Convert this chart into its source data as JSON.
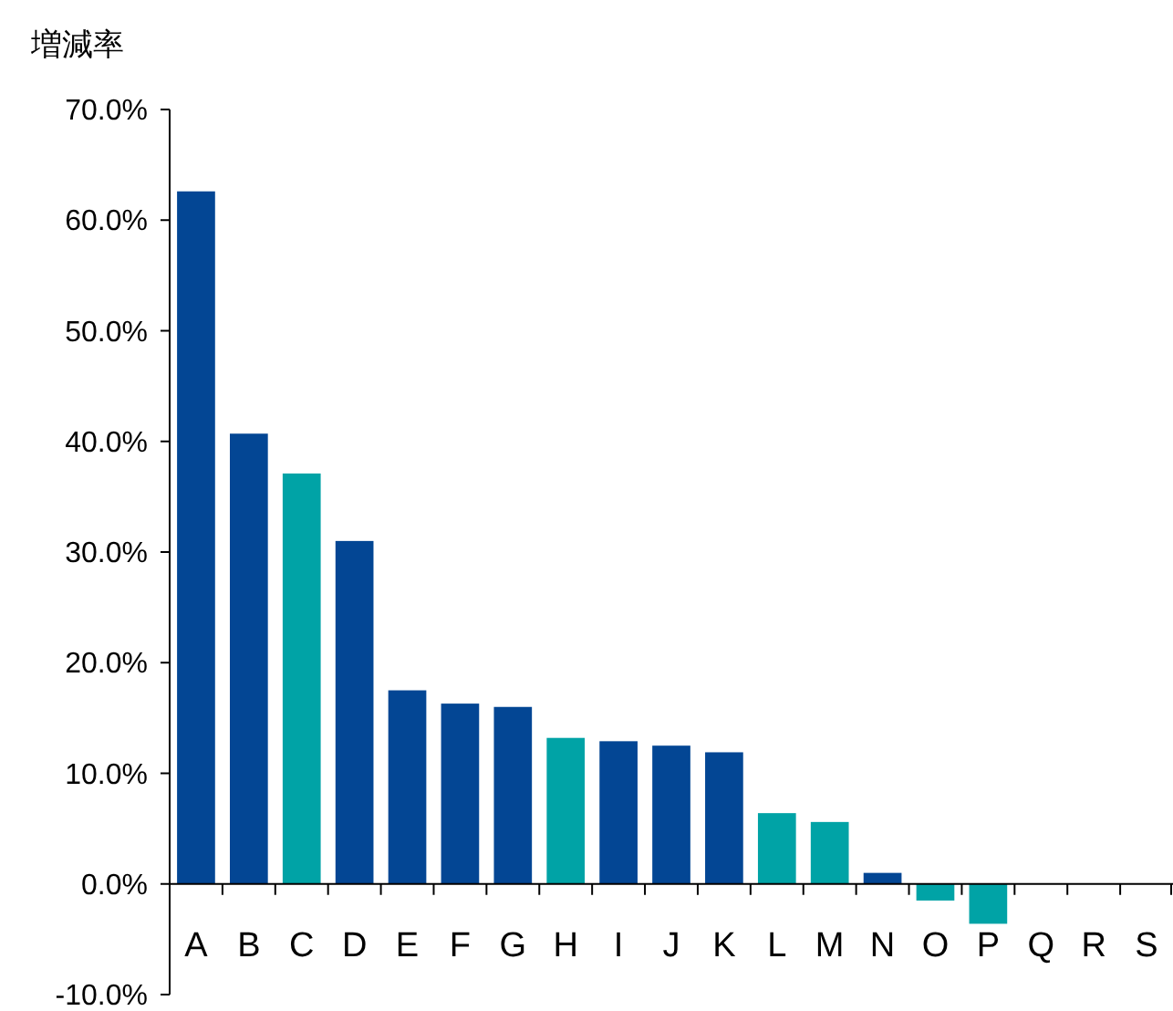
{
  "chart_data": {
    "type": "bar",
    "ylabel": "増減率",
    "categories": [
      "A",
      "B",
      "C",
      "D",
      "E",
      "F",
      "G",
      "H",
      "I",
      "J",
      "K",
      "L",
      "M",
      "N",
      "O",
      "P",
      "Q",
      "R",
      "S"
    ],
    "values": [
      62.6,
      40.7,
      37.1,
      31.0,
      17.5,
      16.3,
      16.0,
      13.2,
      12.9,
      12.5,
      11.9,
      6.4,
      5.6,
      1.0,
      -1.5,
      -3.6,
      0,
      0,
      0
    ],
    "colors": [
      "#034694",
      "#034694",
      "#00a3a6",
      "#034694",
      "#034694",
      "#034694",
      "#034694",
      "#00a3a6",
      "#034694",
      "#034694",
      "#034694",
      "#00a3a6",
      "#00a3a6",
      "#034694",
      "#00a3a6",
      "#00a3a6",
      "#034694",
      "#034694",
      "#034694"
    ],
    "ylim": [
      -10,
      70
    ],
    "yticks": [
      {
        "value": -10,
        "label": "-10.0%"
      },
      {
        "value": 0,
        "label": "0.0%"
      },
      {
        "value": 10,
        "label": "10.0%"
      },
      {
        "value": 20,
        "label": "20.0%"
      },
      {
        "value": 30,
        "label": "30.0%"
      },
      {
        "value": 40,
        "label": "40.0%"
      },
      {
        "value": 50,
        "label": "50.0%"
      },
      {
        "value": 60,
        "label": "60.0%"
      },
      {
        "value": 70,
        "label": "70.0%"
      }
    ],
    "grid": false
  }
}
